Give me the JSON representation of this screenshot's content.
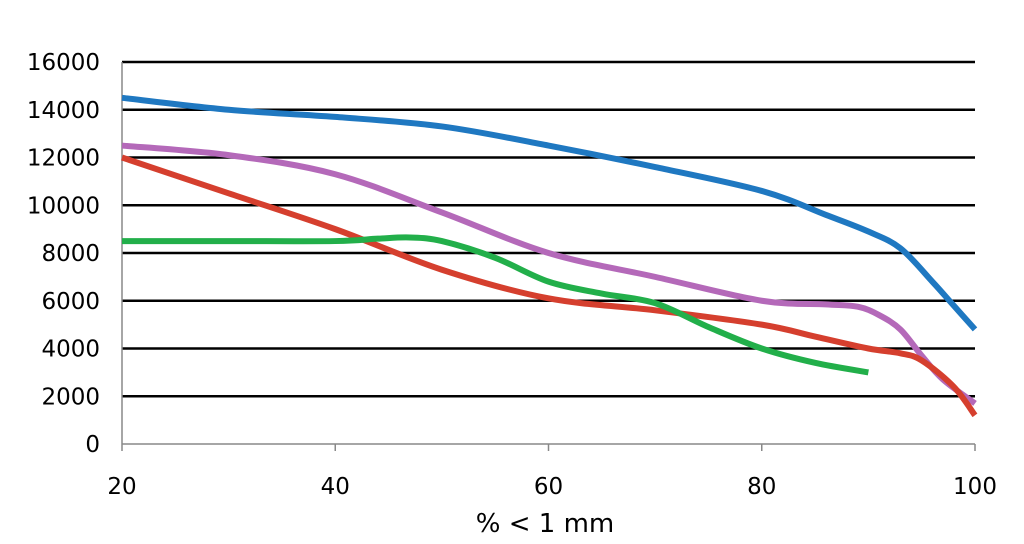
{
  "chart_data": {
    "type": "line",
    "title": "",
    "xlabel": "% < 1 mm",
    "ylabel": "",
    "xlim": [
      20,
      100
    ],
    "ylim": [
      0,
      16000
    ],
    "xticks": [
      "20",
      "40",
      "60",
      "80",
      "100"
    ],
    "yticks": [
      "0",
      "2000",
      "4000",
      "6000",
      "8000",
      "10000",
      "12000",
      "14000",
      "16000"
    ],
    "grid": "horizontal",
    "legend": "none",
    "series": [
      {
        "name": "blue",
        "color": "#1F78C1",
        "x": [
          20,
          30,
          40,
          50,
          60,
          70,
          80,
          86,
          90,
          93,
          96,
          98,
          100
        ],
        "y": [
          14500,
          14000,
          13700,
          13300,
          12500,
          11600,
          10600,
          9600,
          8900,
          8200,
          6800,
          5800,
          4800
        ]
      },
      {
        "name": "purple",
        "color": "#B469B9",
        "x": [
          20,
          30,
          40,
          50,
          60,
          70,
          80,
          86,
          89,
          91,
          93,
          95,
          97,
          100
        ],
        "y": [
          12500,
          12100,
          11300,
          9700,
          8000,
          7000,
          6000,
          5850,
          5750,
          5400,
          4800,
          3700,
          2700,
          1700
        ]
      },
      {
        "name": "red",
        "color": "#D53F2E",
        "x": [
          20,
          30,
          40,
          50,
          60,
          70,
          80,
          85,
          90,
          93,
          95,
          98,
          100
        ],
        "y": [
          12000,
          10500,
          9000,
          7300,
          6100,
          5600,
          5000,
          4500,
          4000,
          3800,
          3500,
          2400,
          1200
        ]
      },
      {
        "name": "green",
        "color": "#22AF4A",
        "x": [
          20,
          30,
          40,
          44,
          47,
          50,
          55,
          60,
          65,
          70,
          75,
          80,
          85,
          90
        ],
        "y": [
          8500,
          8500,
          8500,
          8600,
          8650,
          8500,
          7800,
          6800,
          6300,
          5900,
          4900,
          4000,
          3400,
          3000
        ]
      }
    ]
  }
}
